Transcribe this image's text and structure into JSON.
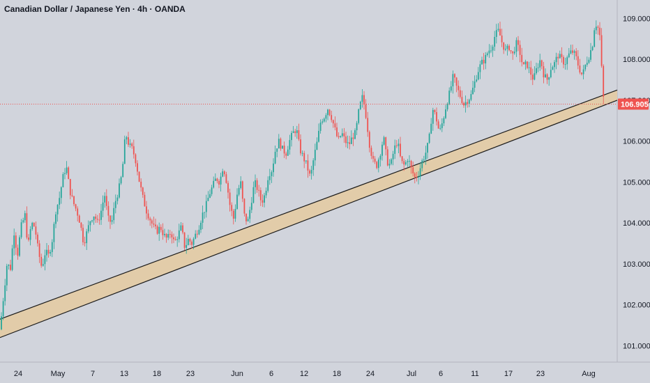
{
  "header": {
    "title": "Canadian Dollar / Japanese Yen · 4h · OANDA"
  },
  "chart_data": {
    "type": "candlestick",
    "symbol": "CAD/JPY",
    "timeframe": "4h",
    "ylim": [
      100.6,
      109.45
    ],
    "y_ticks": [
      {
        "value": 101,
        "label": "101.000"
      },
      {
        "value": 102,
        "label": "102.000"
      },
      {
        "value": 103,
        "label": "103.000"
      },
      {
        "value": 104,
        "label": "104.000"
      },
      {
        "value": 105,
        "label": "105.000"
      },
      {
        "value": 106,
        "label": "106.000"
      },
      {
        "value": 107,
        "label": "107.000"
      },
      {
        "value": 108,
        "label": "108.000"
      },
      {
        "value": 109,
        "label": "109.000"
      }
    ],
    "x_ticks": [
      "24",
      "May",
      "7",
      "13",
      "18",
      "23",
      "Jun",
      "6",
      "12",
      "18",
      "24",
      "Jul",
      "6",
      "11",
      "17",
      "23",
      "Aug"
    ],
    "price_path": [
      [
        0,
        101.4
      ],
      [
        5,
        102.2
      ],
      [
        10,
        103.0
      ],
      [
        15,
        102.9
      ],
      [
        20,
        103.8
      ],
      [
        25,
        103.2
      ],
      [
        30,
        103.9
      ],
      [
        36,
        104.2
      ],
      [
        40,
        103.4
      ],
      [
        45,
        104.0
      ],
      [
        50,
        103.9
      ],
      [
        55,
        103.3
      ],
      [
        60,
        102.9
      ],
      [
        65,
        103.3
      ],
      [
        70,
        103.2
      ],
      [
        75,
        103.6
      ],
      [
        80,
        104.3
      ],
      [
        85,
        104.6
      ],
      [
        90,
        105.1
      ],
      [
        95,
        105.4
      ],
      [
        100,
        104.8
      ],
      [
        105,
        104.5
      ],
      [
        110,
        104.3
      ],
      [
        115,
        104.0
      ],
      [
        120,
        103.5
      ],
      [
        125,
        103.8
      ],
      [
        130,
        104.1
      ],
      [
        135,
        104.2
      ],
      [
        140,
        104.0
      ],
      [
        145,
        104.3
      ],
      [
        150,
        104.7
      ],
      [
        155,
        104.1
      ],
      [
        160,
        104.0
      ],
      [
        165,
        104.5
      ],
      [
        170,
        104.8
      ],
      [
        175,
        105.2
      ],
      [
        180,
        106.2
      ],
      [
        185,
        105.9
      ],
      [
        190,
        105.8
      ],
      [
        195,
        105.5
      ],
      [
        200,
        105.0
      ],
      [
        205,
        104.6
      ],
      [
        210,
        104.3
      ],
      [
        215,
        104.1
      ],
      [
        220,
        103.9
      ],
      [
        225,
        103.8
      ],
      [
        230,
        103.9
      ],
      [
        235,
        103.7
      ],
      [
        240,
        103.6
      ],
      [
        245,
        103.8
      ],
      [
        250,
        103.5
      ],
      [
        255,
        103.7
      ],
      [
        260,
        103.9
      ],
      [
        265,
        103.4
      ],
      [
        270,
        103.6
      ],
      [
        275,
        103.5
      ],
      [
        280,
        103.7
      ],
      [
        285,
        103.9
      ],
      [
        290,
        104.2
      ],
      [
        295,
        104.4
      ],
      [
        300,
        104.7
      ],
      [
        305,
        104.9
      ],
      [
        310,
        105.1
      ],
      [
        315,
        105.0
      ],
      [
        320,
        105.4
      ],
      [
        325,
        105.0
      ],
      [
        330,
        104.4
      ],
      [
        335,
        104.1
      ],
      [
        340,
        104.7
      ],
      [
        345,
        105.0
      ],
      [
        350,
        104.2
      ],
      [
        355,
        104.0
      ],
      [
        360,
        104.5
      ],
      [
        365,
        105.0
      ],
      [
        370,
        104.8
      ],
      [
        375,
        104.5
      ],
      [
        380,
        104.7
      ],
      [
        385,
        105.2
      ],
      [
        390,
        105.3
      ],
      [
        395,
        105.8
      ],
      [
        400,
        106.0
      ],
      [
        405,
        105.8
      ],
      [
        410,
        105.7
      ],
      [
        415,
        106.0
      ],
      [
        420,
        106.2
      ],
      [
        425,
        106.3
      ],
      [
        430,
        105.8
      ],
      [
        435,
        105.6
      ],
      [
        440,
        105.4
      ],
      [
        445,
        105.1
      ],
      [
        450,
        105.6
      ],
      [
        455,
        106.0
      ],
      [
        460,
        106.5
      ],
      [
        465,
        106.6
      ],
      [
        470,
        106.8
      ],
      [
        475,
        106.6
      ],
      [
        480,
        106.3
      ],
      [
        485,
        106.0
      ],
      [
        490,
        106.2
      ],
      [
        495,
        106.0
      ],
      [
        500,
        105.9
      ],
      [
        505,
        106.1
      ],
      [
        510,
        106.2
      ],
      [
        515,
        106.8
      ],
      [
        520,
        107.1
      ],
      [
        525,
        106.6
      ],
      [
        530,
        105.9
      ],
      [
        535,
        105.5
      ],
      [
        540,
        105.4
      ],
      [
        545,
        105.7
      ],
      [
        550,
        106.1
      ],
      [
        555,
        105.5
      ],
      [
        560,
        105.4
      ],
      [
        565,
        105.8
      ],
      [
        570,
        106.0
      ],
      [
        575,
        105.5
      ],
      [
        580,
        105.4
      ],
      [
        585,
        105.6
      ],
      [
        590,
        105.3
      ],
      [
        595,
        105.1
      ],
      [
        600,
        105.2
      ],
      [
        605,
        105.5
      ],
      [
        610,
        105.7
      ],
      [
        615,
        106.0
      ],
      [
        620,
        106.8
      ],
      [
        625,
        106.6
      ],
      [
        630,
        106.2
      ],
      [
        635,
        106.5
      ],
      [
        640,
        106.9
      ],
      [
        645,
        107.2
      ],
      [
        650,
        107.6
      ],
      [
        655,
        107.3
      ],
      [
        660,
        107.1
      ],
      [
        665,
        106.9
      ],
      [
        670,
        107.0
      ],
      [
        675,
        107.1
      ],
      [
        680,
        107.4
      ],
      [
        685,
        107.7
      ],
      [
        690,
        107.9
      ],
      [
        695,
        108.0
      ],
      [
        700,
        108.2
      ],
      [
        705,
        108.3
      ],
      [
        710,
        108.6
      ],
      [
        715,
        108.7
      ],
      [
        720,
        108.4
      ],
      [
        725,
        108.2
      ],
      [
        730,
        108.3
      ],
      [
        735,
        108.1
      ],
      [
        740,
        108.4
      ],
      [
        745,
        108.2
      ],
      [
        750,
        107.8
      ],
      [
        755,
        107.9
      ],
      [
        760,
        107.7
      ],
      [
        765,
        107.5
      ],
      [
        770,
        107.8
      ],
      [
        775,
        108.0
      ],
      [
        780,
        107.6
      ],
      [
        785,
        107.5
      ],
      [
        790,
        107.8
      ],
      [
        795,
        107.9
      ],
      [
        800,
        108.1
      ],
      [
        805,
        108.0
      ],
      [
        810,
        107.9
      ],
      [
        815,
        108.1
      ],
      [
        820,
        108.2
      ],
      [
        825,
        108.1
      ],
      [
        830,
        107.8
      ],
      [
        835,
        107.6
      ],
      [
        840,
        107.9
      ],
      [
        845,
        108.1
      ],
      [
        850,
        108.4
      ],
      [
        853,
        108.9
      ],
      [
        857,
        108.8
      ],
      [
        861,
        108.5
      ],
      [
        863,
        107.6
      ],
      [
        865,
        107.1
      ],
      [
        866,
        106.9
      ]
    ],
    "support_channel": {
      "upper_start": [
        0,
        101.65
      ],
      "upper_end": [
        885,
        107.25
      ],
      "lower_start": [
        0,
        101.2
      ],
      "lower_end": [
        885,
        107.0
      ]
    },
    "last_price": {
      "value": 106.905,
      "label": "106.905"
    },
    "colors": {
      "background": "#d1d4dc",
      "bull": "#26a69a",
      "bear": "#ef5350",
      "channel_fill": "#e2cca9",
      "channel_line": "#1a1a1a",
      "last_price": "#ef5350",
      "text": "#131722"
    },
    "grid": false
  }
}
